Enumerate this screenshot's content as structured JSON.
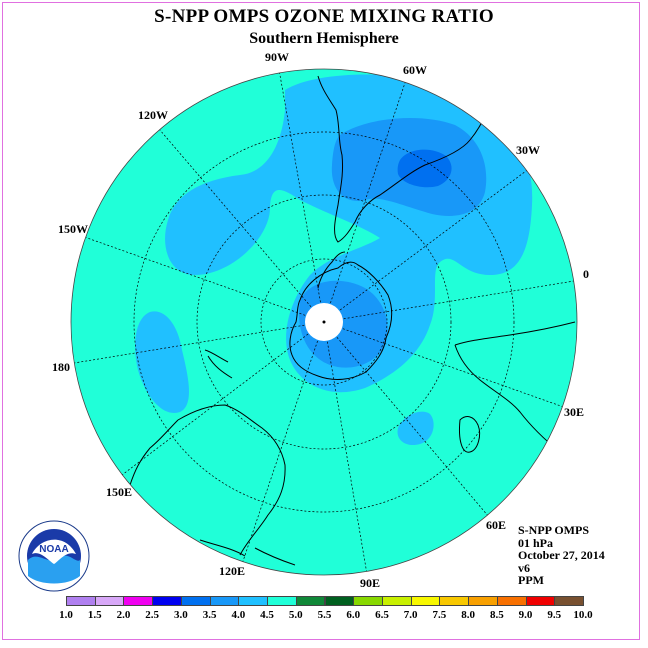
{
  "title": "S-NPP OMPS OZONE MIXING RATIO",
  "subtitle": "Southern Hemisphere",
  "longitude_labels": {
    "w90": "90W",
    "w60": "60W",
    "w30": "30W",
    "e0": "0",
    "e30": "30E",
    "e60": "60E",
    "e90": "90E",
    "e120": "120E",
    "e150": "150E",
    "d180": "180",
    "w150": "150W",
    "w120": "120W"
  },
  "info": {
    "instrument": "S-NPP OMPS",
    "level": "01 hPa",
    "date": "October 27, 2014",
    "version": "v6",
    "units": "PPM"
  },
  "colorbar": {
    "labels": [
      "1.0",
      "1.5",
      "2.0",
      "2.5",
      "3.0",
      "3.5",
      "4.0",
      "4.5",
      "5.0",
      "5.5",
      "6.0",
      "6.5",
      "7.0",
      "7.5",
      "8.0",
      "8.5",
      "9.0",
      "9.5",
      "10.0"
    ],
    "colors": [
      "#b080f0",
      "#d8a8f8",
      "#f000f0",
      "#0000f0",
      "#0070f0",
      "#1898f8",
      "#20c0ff",
      "#20ffd8",
      "#108838",
      "#006020",
      "#88d800",
      "#c8f000",
      "#f8f800",
      "#f8c800",
      "#f8a000",
      "#f87000",
      "#f00000",
      "#785030"
    ]
  },
  "map_colors": {
    "background": "#20ffd8",
    "level_4_0": "#20c0ff",
    "level_3_5": "#1898f8",
    "pole": "#ffffff"
  },
  "logo_text": "NOAA"
}
